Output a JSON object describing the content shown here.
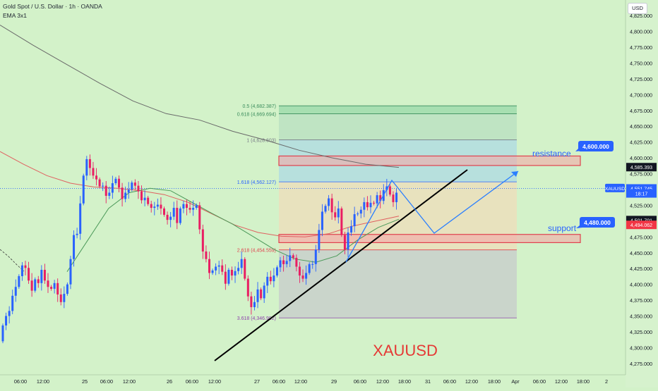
{
  "header": {
    "title": "Gold Spot / U.S. Dollar · 1h · OANDA",
    "indicator": "EMA 3x1"
  },
  "price_axis": {
    "currency_label": "USD",
    "ticks": [
      "4,825.000",
      "4,800.000",
      "4,775.000",
      "4,750.000",
      "4,725.000",
      "4,700.000",
      "4,675.000",
      "4,650.000",
      "4,625.000",
      "4,600.000",
      "4,575.000",
      "4,550.000",
      "4,525.000",
      "4,500.000",
      "4,475.000",
      "4,450.000",
      "4,425.000",
      "4,400.000",
      "4,375.000",
      "4,350.000",
      "4,325.000",
      "4,300.000",
      "4,275.000"
    ],
    "tags": [
      {
        "label": "4,585.393",
        "value": 4585.393,
        "bg": "#131722",
        "fg": "#ffffff"
      },
      {
        "label": "XAUUSD",
        "value": 4551.745,
        "bg": "#2962ff",
        "fg": "#ffffff",
        "side": "left"
      },
      {
        "label": "4,551.745",
        "value": 4551.745,
        "bg": "#2962ff",
        "fg": "#ffffff"
      },
      {
        "label": "18:17",
        "value": 4543.8,
        "bg": "#2962ff",
        "fg": "#ffffff"
      },
      {
        "label": "4,501.701",
        "value": 4501.701,
        "bg": "#131722",
        "fg": "#ffffff"
      },
      {
        "label": "4,494.062",
        "value": 4494.062,
        "bg": "#f23645",
        "fg": "#ffffff"
      }
    ]
  },
  "time_axis": {
    "ticks": [
      "06:00",
      "12:00",
      "25",
      "06:00",
      "12:00",
      "26",
      "06:00",
      "12:00",
      "27",
      "06:00",
      "12:00",
      "29",
      "06:00",
      "12:00",
      "18:00",
      "31",
      "06:00",
      "12:00",
      "18:00",
      "Apr",
      "06:00",
      "12:00",
      "18:00",
      "2"
    ]
  },
  "fib_levels": [
    {
      "ratio": "0.5",
      "value": 4682.387,
      "label": "0.5 (4,682.387)",
      "color": "#3a8c5c"
    },
    {
      "ratio": "0.618",
      "value": 4669.694,
      "label": "0.618 (4,669.694)",
      "color": "#3a8c5c"
    },
    {
      "ratio": "1",
      "value": 4628.603,
      "label": "1 (4,628.603)",
      "color": "#787b86"
    },
    {
      "ratio": "1.618",
      "value": 4562.127,
      "label": "1.618 (4,562.127)",
      "color": "#2962ff"
    },
    {
      "ratio": "2.618",
      "value": 4454.559,
      "label": "2.618 (4,454.559)",
      "color": "#e0424e"
    },
    {
      "ratio": "3.618",
      "value": 4346.992,
      "label": "3.618 (4,346.992)",
      "color": "#8e44ad"
    }
  ],
  "zones": {
    "resistance": {
      "label": "resistance",
      "value_label": "4,600.000",
      "value": 4600.0
    },
    "support": {
      "label": "support",
      "value_label": "4,480.000",
      "value": 4480.0
    }
  },
  "watermark": "XAUUSD",
  "colors": {
    "background": "#d3f2c9",
    "up": "#2962ff",
    "down": "#e91e63",
    "ema_dark": "#6a6a6a",
    "ema_green": "#4c9a5a",
    "ema_red": "#e06060",
    "zone_red": "#e0424e",
    "projection": "#2a7fff"
  },
  "chart_data": {
    "type": "candlestick",
    "title": "Gold Spot / U.S. Dollar · 1h · OANDA",
    "symbol": "XAUUSD",
    "timeframe": "1h",
    "ylim": [
      4262,
      4838
    ],
    "last_price": 4551.745,
    "x": [
      "06:00",
      "12:00",
      "25",
      "06:00",
      "12:00",
      "26",
      "06:00",
      "12:00",
      "27",
      "06:00",
      "12:00",
      "29",
      "06:00",
      "12:00"
    ],
    "closes": [
      4335,
      4350,
      4358,
      4382,
      4396,
      4413,
      4430,
      4426,
      4406,
      4390,
      4408,
      4402,
      4423,
      4406,
      4396,
      4393,
      4402,
      4384,
      4372,
      4385,
      4400,
      4440,
      4478,
      4480,
      4528,
      4572,
      4598,
      4584,
      4572,
      4566,
      4555,
      4556,
      4540,
      4545,
      4560,
      4567,
      4553,
      4535,
      4545,
      4550,
      4561,
      4556,
      4547,
      4533,
      4537,
      4527,
      4521,
      4523,
      4526,
      4520,
      4510,
      4502,
      4507,
      4521,
      4497,
      4520,
      4527,
      4521,
      4518,
      4521,
      4525,
      4487,
      4452,
      4440,
      4418,
      4422,
      4428,
      4430,
      4420,
      4401,
      4423,
      4414,
      4421,
      4426,
      4440,
      4409,
      4381,
      4364,
      4372,
      4392,
      4378,
      4398,
      4412,
      4405,
      4414,
      4427,
      4438,
      4432,
      4437,
      4446,
      4442,
      4428,
      4414,
      4409,
      4418,
      4432,
      4432,
      4455,
      4486,
      4515,
      4524,
      4536,
      4514,
      4506,
      4520,
      4478,
      4455,
      4482,
      4492,
      4511,
      4512,
      4518,
      4530,
      4522,
      4529,
      4528,
      4541,
      4532,
      4549,
      4555,
      4542,
      4530,
      4545
    ],
    "ema_lines": [
      {
        "name": "EMA 3x1",
        "values": [
          4810,
          4778,
          4748,
          4718,
          4690,
          4670,
          4660,
          4642,
          4628,
          4612,
          4600,
          4590,
          4585
        ]
      }
    ],
    "horizontal_levels": [
      4682.387,
      4669.694,
      4628.603,
      4562.127,
      4454.559,
      4346.992
    ],
    "zones": [
      {
        "name": "resistance",
        "value": 4600,
        "range": [
          4588,
          4603
        ]
      },
      {
        "name": "support",
        "value": 4480,
        "range": [
          4466,
          4479
        ]
      }
    ],
    "trendline": {
      "from": [
        0,
        4290
      ],
      "to": [
        1,
        4590
      ]
    },
    "projection_path": [
      4425,
      4568,
      4480,
      4595
    ]
  }
}
